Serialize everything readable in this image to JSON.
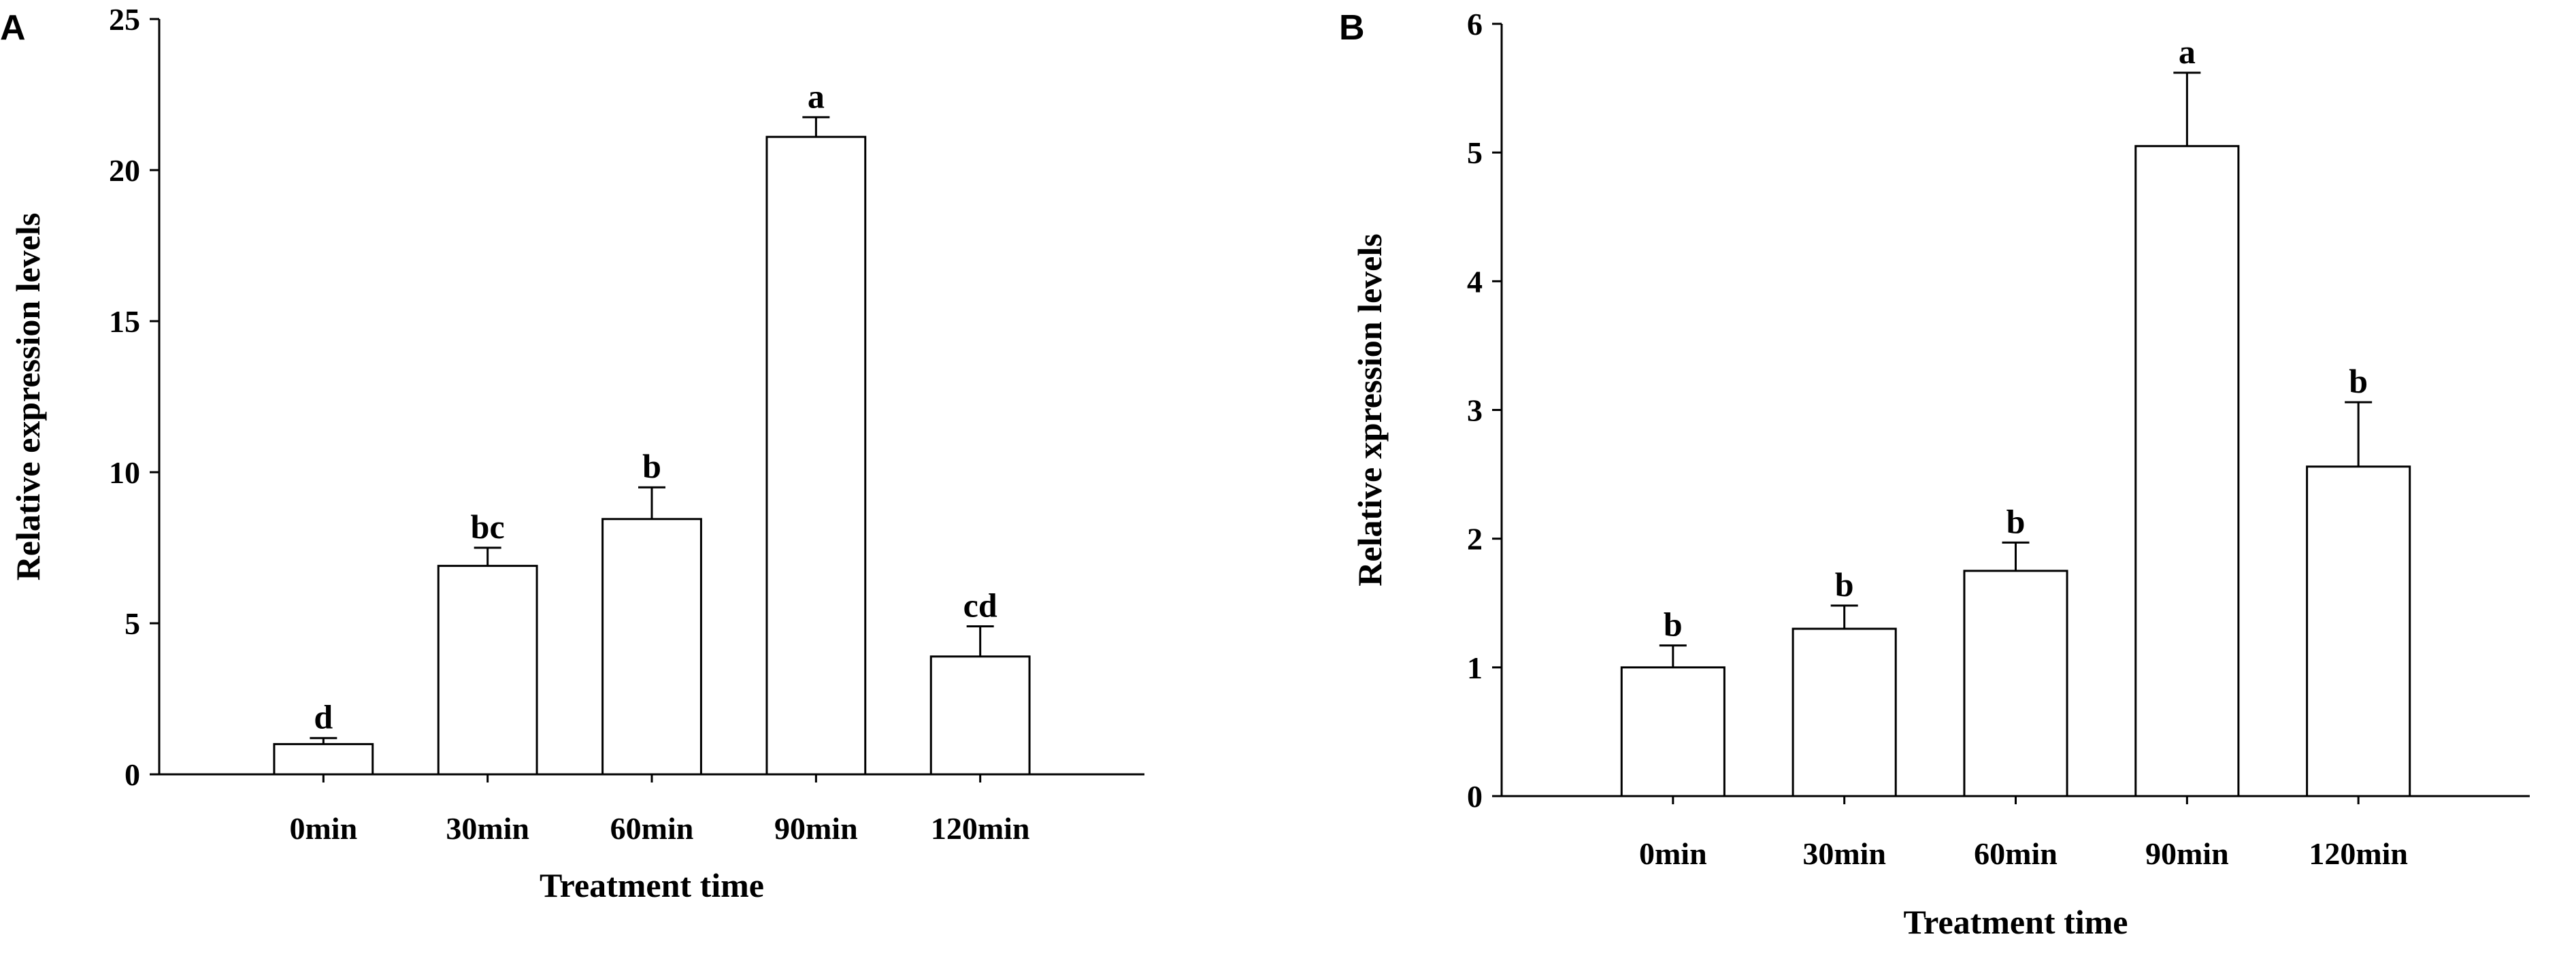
{
  "chart_data": [
    {
      "type": "bar",
      "panel": "A",
      "categories": [
        "0min",
        "30min",
        "60min",
        "90min",
        "120min"
      ],
      "values": [
        1.0,
        6.9,
        8.45,
        21.1,
        3.9
      ],
      "errors": [
        0.2,
        0.6,
        1.05,
        0.65,
        1.0
      ],
      "sig_labels": [
        "d",
        "bc",
        "b",
        "a",
        "cd"
      ],
      "xlabel": "Treatment time",
      "ylabel": "Relative expression levels",
      "ylim": [
        0,
        25
      ],
      "yticks": [
        0,
        5,
        10,
        15,
        20,
        25
      ],
      "grid": false
    },
    {
      "type": "bar",
      "panel": "B",
      "categories": [
        "0min",
        "30min",
        "60min",
        "90min",
        "120min"
      ],
      "values": [
        1.0,
        1.3,
        1.75,
        5.05,
        2.56
      ],
      "errors": [
        0.17,
        0.18,
        0.22,
        0.57,
        0.5
      ],
      "sig_labels": [
        "b",
        "b",
        "b",
        "a",
        "b"
      ],
      "xlabel": "Treatment time",
      "ylabel": "Relative xpression levels",
      "ylim": [
        0,
        6
      ],
      "yticks": [
        0,
        1,
        2,
        3,
        4,
        5,
        6
      ],
      "grid": false
    }
  ]
}
